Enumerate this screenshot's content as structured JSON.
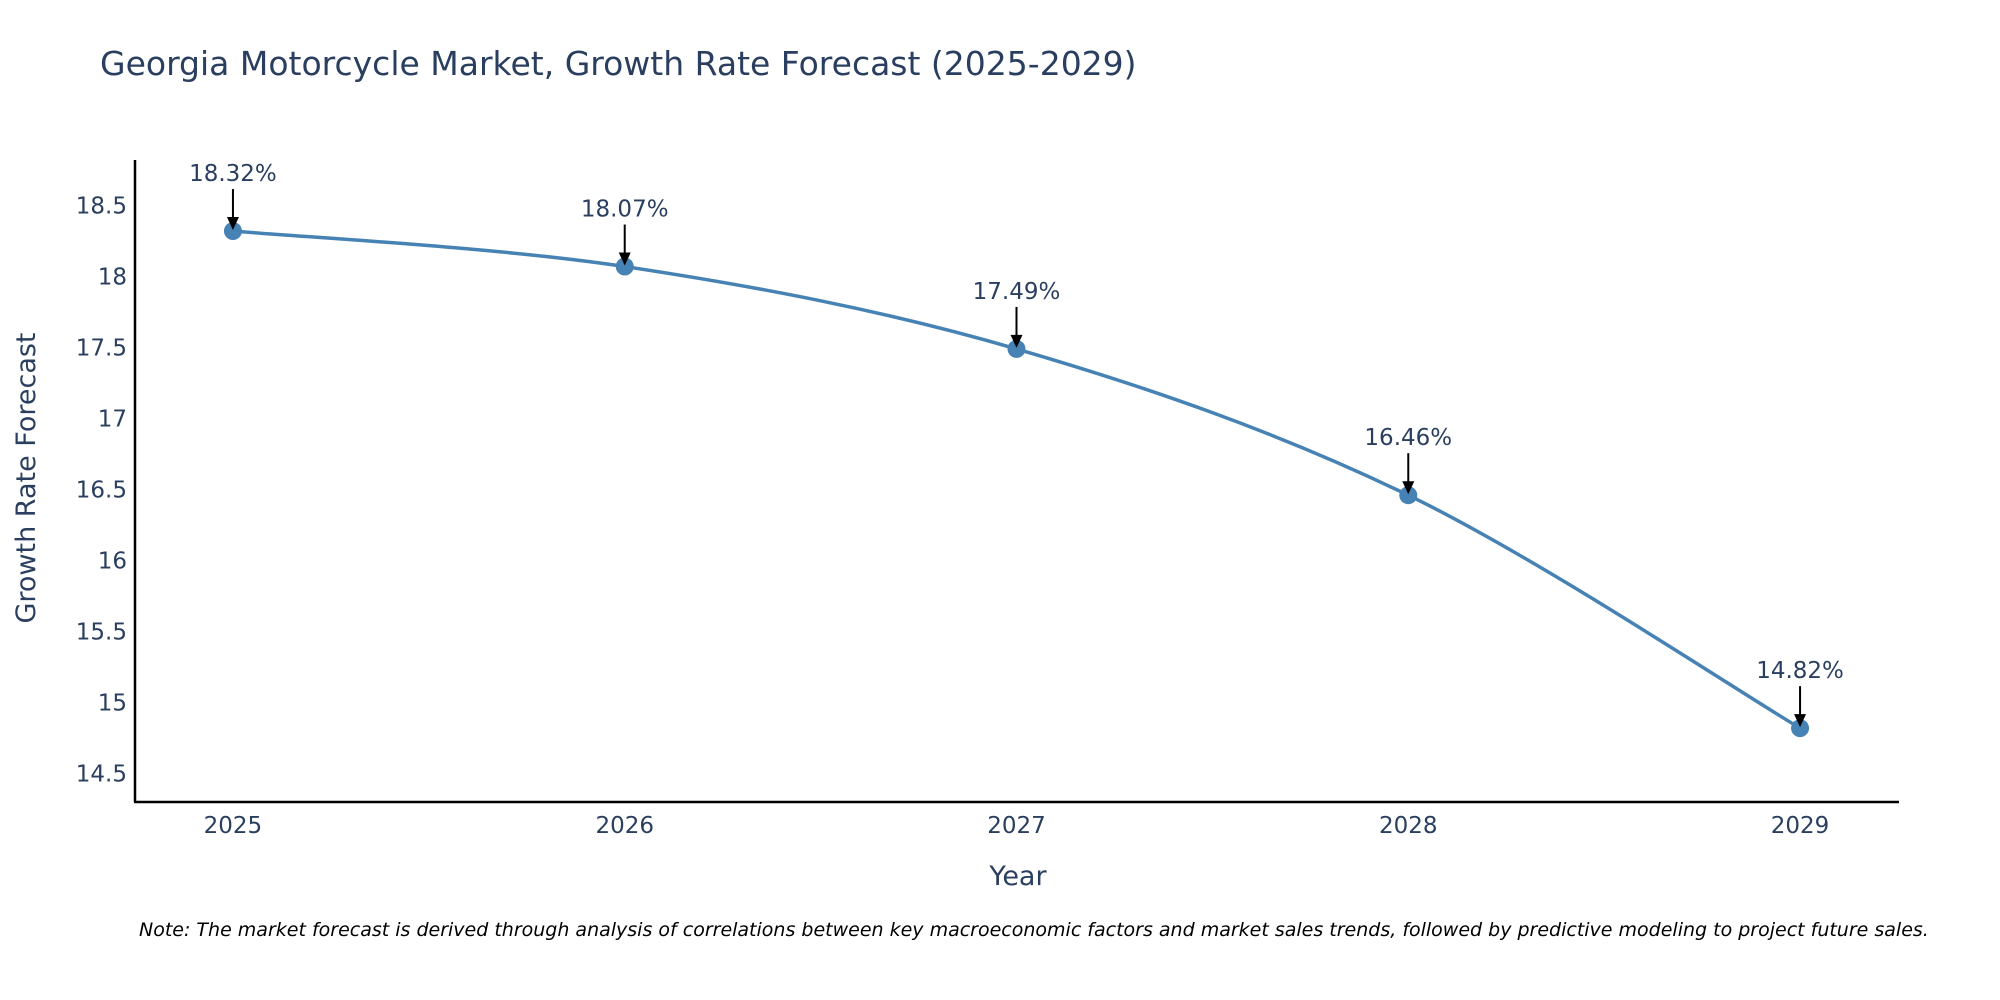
{
  "chart_data": {
    "type": "line",
    "title": "Georgia Motorcycle Market, Growth Rate Forecast (2025-2029)",
    "xlabel": "Year",
    "ylabel": "Growth Rate Forecast",
    "categories": [
      "2025",
      "2026",
      "2027",
      "2028",
      "2029"
    ],
    "values": [
      18.32,
      18.07,
      17.49,
      16.46,
      14.82
    ],
    "data_labels": [
      "18.32%",
      "18.07%",
      "17.49%",
      "16.46%",
      "14.82%"
    ],
    "yticks": [
      14.5,
      15,
      15.5,
      16,
      16.5,
      17,
      17.5,
      18,
      18.5
    ],
    "ytick_labels": [
      "14.5",
      "15",
      "15.5",
      "16",
      "16.5",
      "17",
      "17.5",
      "18",
      "18.5"
    ],
    "ylim": [
      14.3,
      18.82
    ],
    "xlim": [
      -0.25,
      4.25
    ],
    "grid": false,
    "line_shape": "spline",
    "series_color": "#4682b4",
    "axis_color": "#000000",
    "text_color": "#2a3f5f",
    "note": "Note: The market forecast is derived through analysis of correlations between key macroeconomic factors and market sales trends, followed by predictive modeling to project future sales."
  }
}
